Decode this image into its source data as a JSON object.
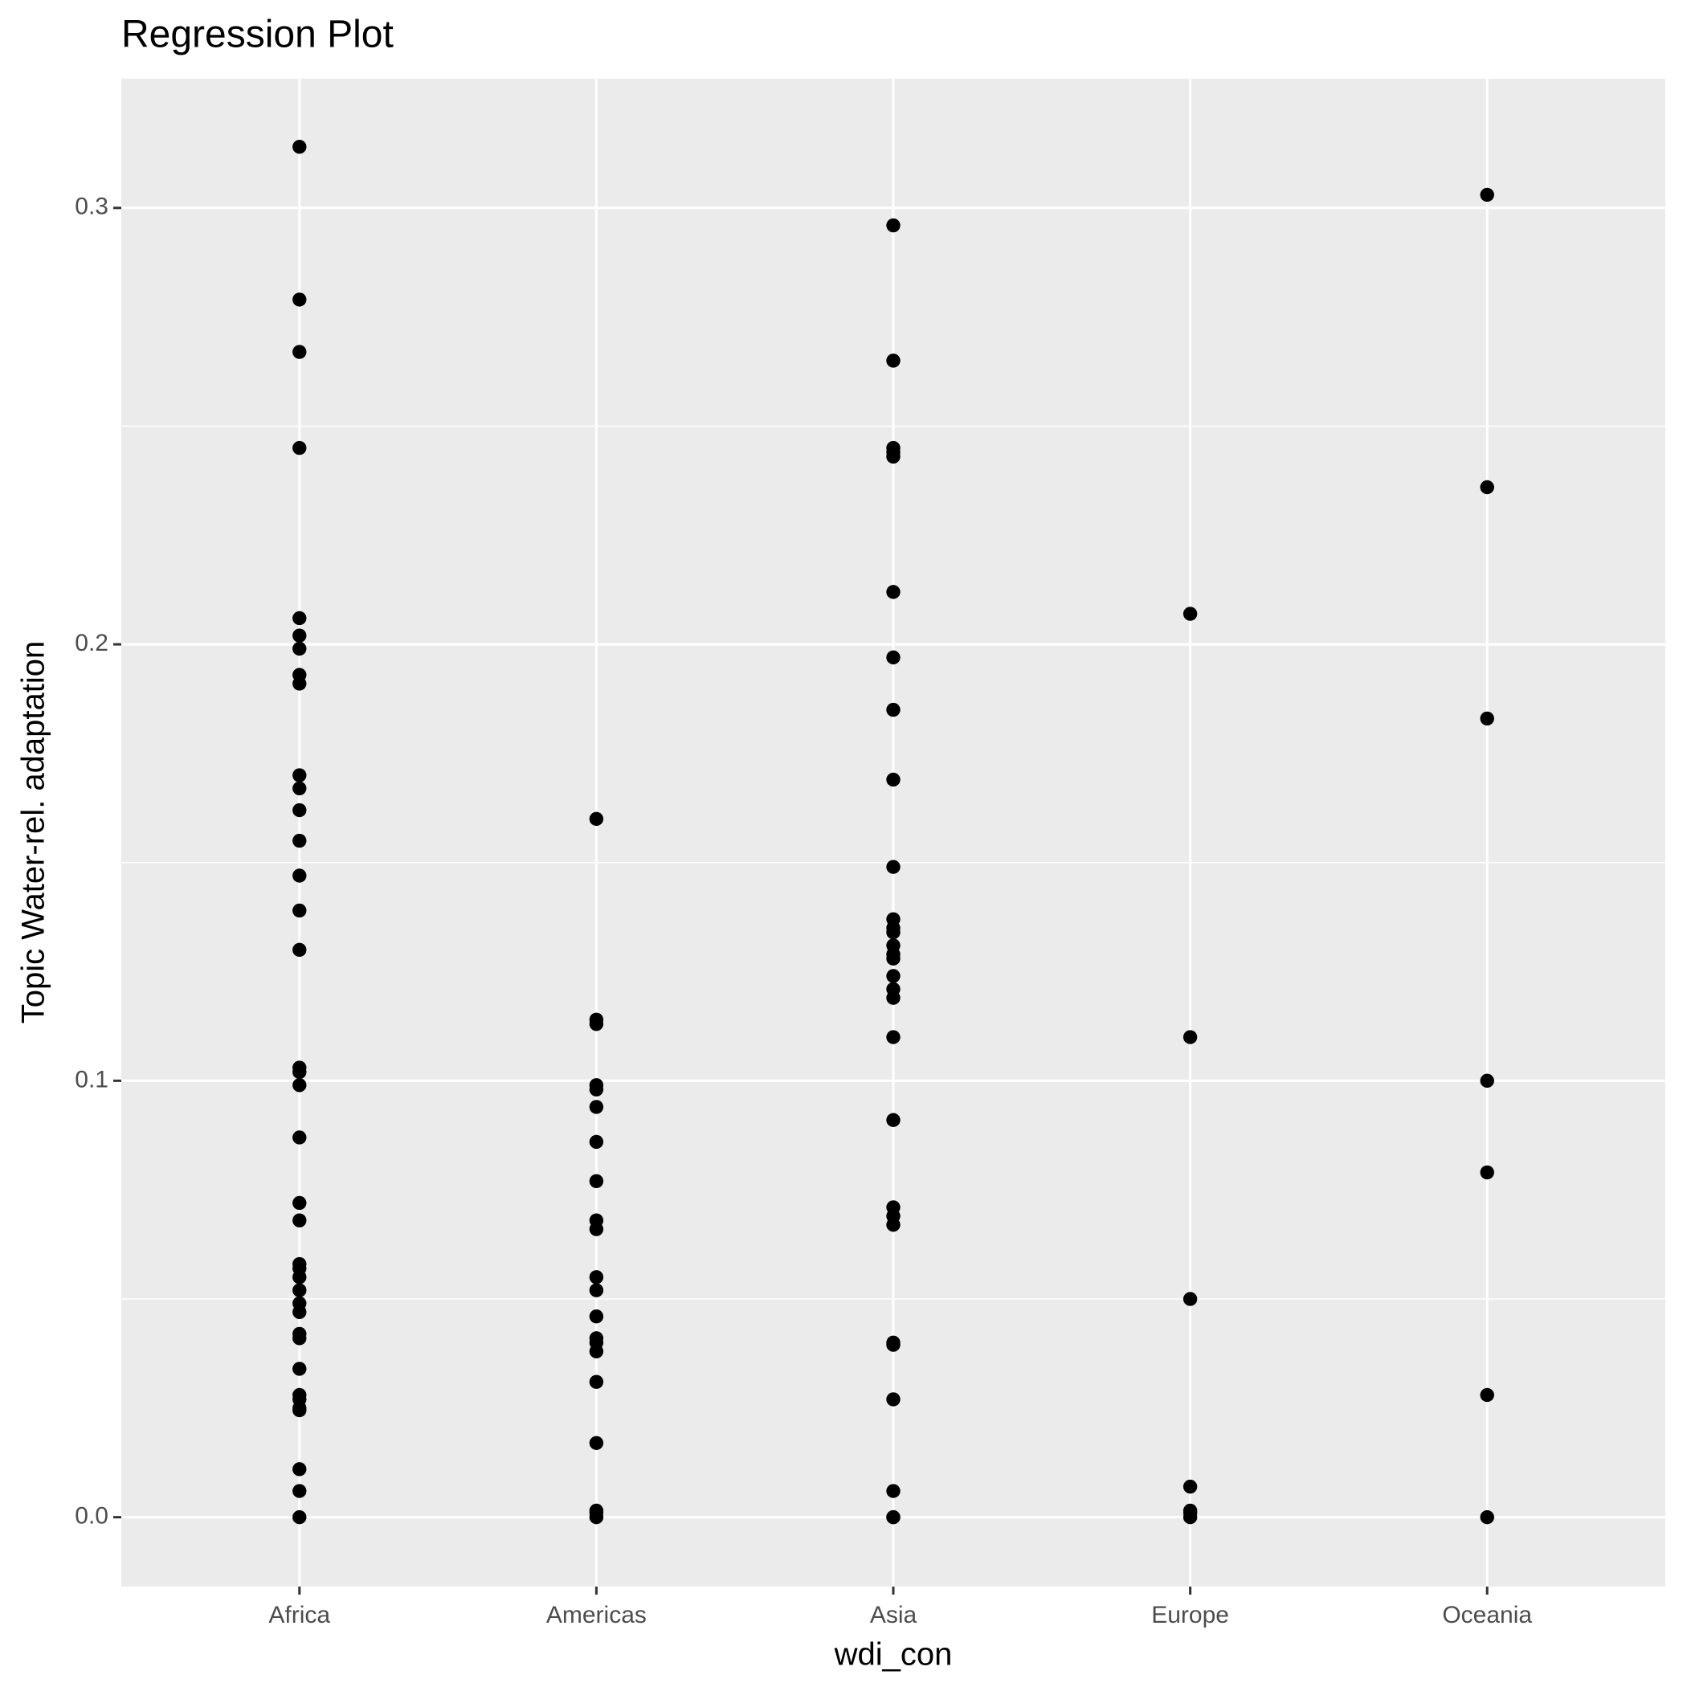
{
  "chart_data": {
    "type": "scatter",
    "title": "Regression Plot",
    "x_label": "wdi_con",
    "y_label": "Topic Water-rel. adaptation",
    "categories": [
      "Africa",
      "Americas",
      "Asia",
      "Europe",
      "Oceania"
    ],
    "values": [
      [
        0.314,
        0.279,
        0.267,
        0.245,
        0.206,
        0.202,
        0.199,
        0.193,
        0.191,
        0.17,
        0.167,
        0.162,
        0.155,
        0.147,
        0.139,
        0.13,
        0.103,
        0.102,
        0.099,
        0.087,
        0.072,
        0.068,
        0.058,
        0.057,
        0.055,
        0.052,
        0.049,
        0.047,
        0.042,
        0.041,
        0.034,
        0.028,
        0.027,
        0.025,
        0.0245,
        0.011,
        0.006,
        0
      ],
      [
        0.16,
        0.114,
        0.113,
        0.099,
        0.098,
        0.094,
        0.086,
        0.077,
        0.068,
        0.066,
        0.055,
        0.052,
        0.046,
        0.041,
        0.04,
        0.038,
        0.031,
        0.017,
        0.0015,
        0.001,
        0
      ],
      [
        0.296,
        0.265,
        0.245,
        0.244,
        0.243,
        0.212,
        0.197,
        0.185,
        0.169,
        0.149,
        0.137,
        0.135,
        0.134,
        0.131,
        0.129,
        0.128,
        0.124,
        0.121,
        0.119,
        0.11,
        0.091,
        0.071,
        0.069,
        0.067,
        0.04,
        0.0395,
        0.027,
        0.006,
        0,
        0
      ],
      [
        0.207,
        0.11,
        0.05,
        0.007,
        0.0015,
        0.001,
        0
      ],
      [
        0.303,
        0.236,
        0.183,
        0.1,
        0.079,
        0.028,
        0
      ]
    ],
    "color": "#000000",
    "ylim": [
      -0.0159,
      0.3296
    ],
    "yticks": [
      {
        "value": 0,
        "label": "0.0"
      },
      0.1,
      0.2,
      0.3
    ],
    "yticks_minor": [
      0.05,
      0.15,
      0.25
    ],
    "grid": true
  }
}
